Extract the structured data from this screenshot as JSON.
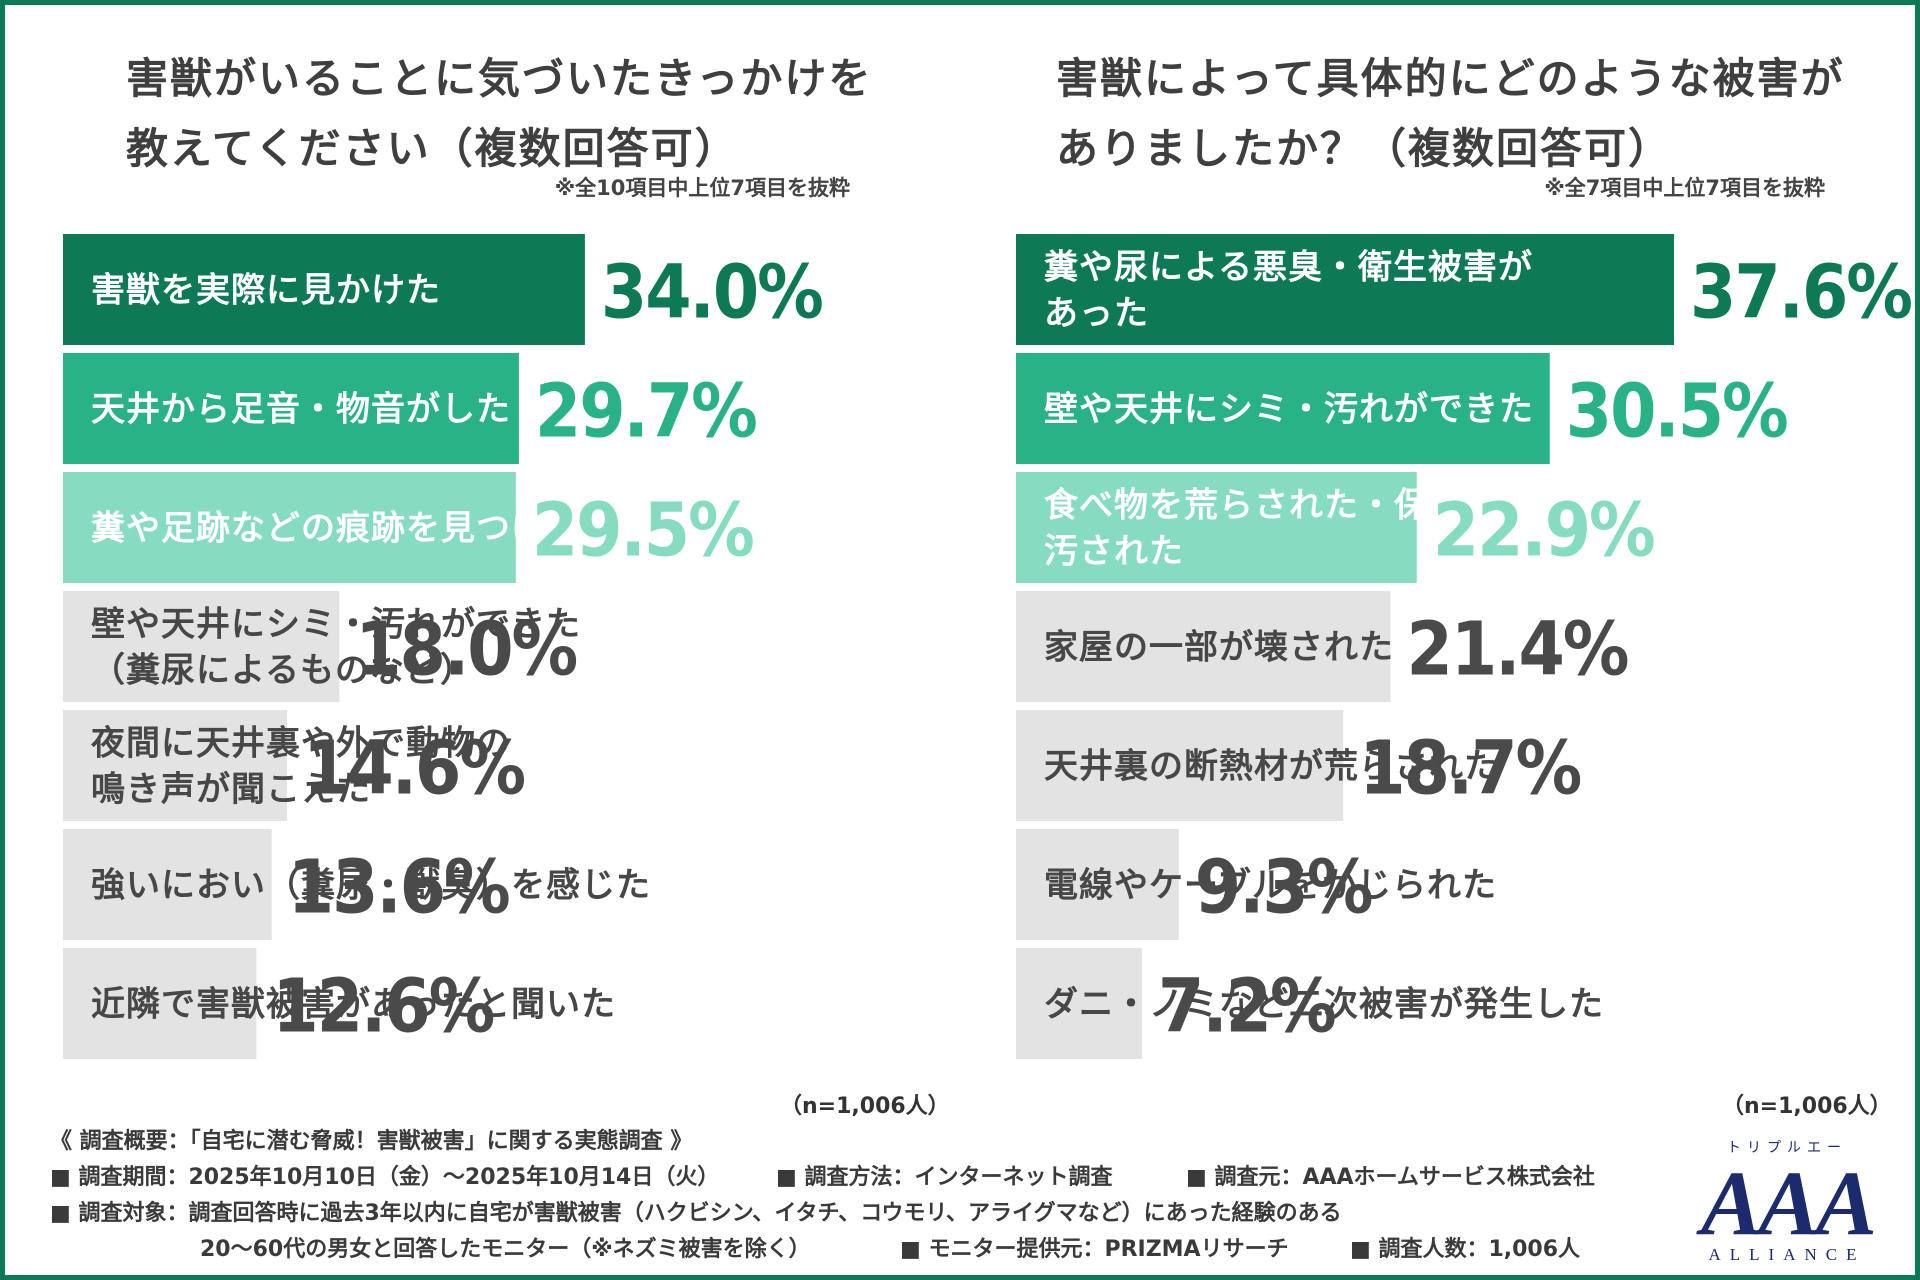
{
  "colors": {
    "border": "#0e7a55",
    "rank1": "#0e7a55",
    "rank2": "#28b286",
    "rank3": "#85dcc0",
    "other": "#e3e3e3",
    "value_other": "#4a4a4a",
    "logo": "#1c2a6e"
  },
  "left": {
    "title_lines": [
      "害獣がいることに気づいたきっかけを",
      "教えてください（複数回答可）"
    ],
    "note": "※全10項目中上位7項目を抜粋",
    "n_label": "（n=1,006人）"
  },
  "right": {
    "title_lines": [
      "害獣によって具体的にどのような被害が",
      "ありましたか？（複数回答可）"
    ],
    "note": "※全7項目中上位7項目を抜粋",
    "n_label": "（n=1,006人）"
  },
  "chart_data": [
    {
      "type": "bar",
      "orientation": "horizontal",
      "title": "害獣がいることに気づいたきっかけを教えてください（複数回答可）",
      "unit": "%",
      "categories": [
        [
          "害獣を実際に見かけた"
        ],
        [
          "天井から足音・物音がした"
        ],
        [
          "糞や足跡などの痕跡を見つけた"
        ],
        [
          "壁や天井にシミ・汚れができた",
          "（糞尿によるものなど）"
        ],
        [
          "夜間に天井裏や外で動物の",
          "鳴き声が聞こえた"
        ],
        [
          "強いにおい（糞尿・獣臭）を感じた"
        ],
        [
          "近隣で害獣被害があったと聞いた"
        ]
      ],
      "values": [
        34.0,
        29.7,
        29.5,
        18.0,
        14.6,
        13.6,
        12.6
      ],
      "value_labels": [
        "34.0%",
        "29.7%",
        "29.5%",
        "18.0%",
        "14.6%",
        "13.6%",
        "12.6%"
      ]
    },
    {
      "type": "bar",
      "orientation": "horizontal",
      "title": "害獣によって具体的にどのような被害がありましたか？（複数回答可）",
      "unit": "%",
      "categories": [
        [
          "糞や尿による悪臭・衛生被害が",
          "あった"
        ],
        [
          "壁や天井にシミ・汚れができた"
        ],
        [
          "食べ物を荒らされた・保管物を",
          "汚された"
        ],
        [
          "家屋の一部が壊された"
        ],
        [
          "天井裏の断熱材が荒らされた"
        ],
        [
          "電線やケーブルをかじられた"
        ],
        [
          "ダニ・ノミなど二次被害が発生した"
        ]
      ],
      "values": [
        37.6,
        30.5,
        22.9,
        21.4,
        18.7,
        9.3,
        7.2
      ],
      "value_labels": [
        "37.6%",
        "30.5%",
        "22.9%",
        "21.4%",
        "18.7%",
        "9.3%",
        "7.2%"
      ]
    }
  ],
  "footer": {
    "summary": "《 調査概要：「自宅に潜む脅威！害獣被害」に関する実態調査 》",
    "line2": [
      "■ 調査期間：2025年10月10日（金）～2025年10月14日（火）",
      "■ 調査方法：インターネット調査",
      "■ 調査元：AAAホームサービス株式会社"
    ],
    "line3": "■ 調査対象：調査回答時に過去3年以内に自宅が害獣被害（ハクビシン、イタチ、コウモリ、アライグマなど）にあった経験のある",
    "line4": [
      "20～60代の男女と回答したモニター（※ネズミ被害を除く）",
      "■ モニター提供元：PRIZMAリサーチ",
      "■ 調査人数：1,006人"
    ]
  },
  "logo": {
    "ruby": "トリプルエー",
    "mark": "AAA",
    "sub": "ALLIANCE"
  }
}
